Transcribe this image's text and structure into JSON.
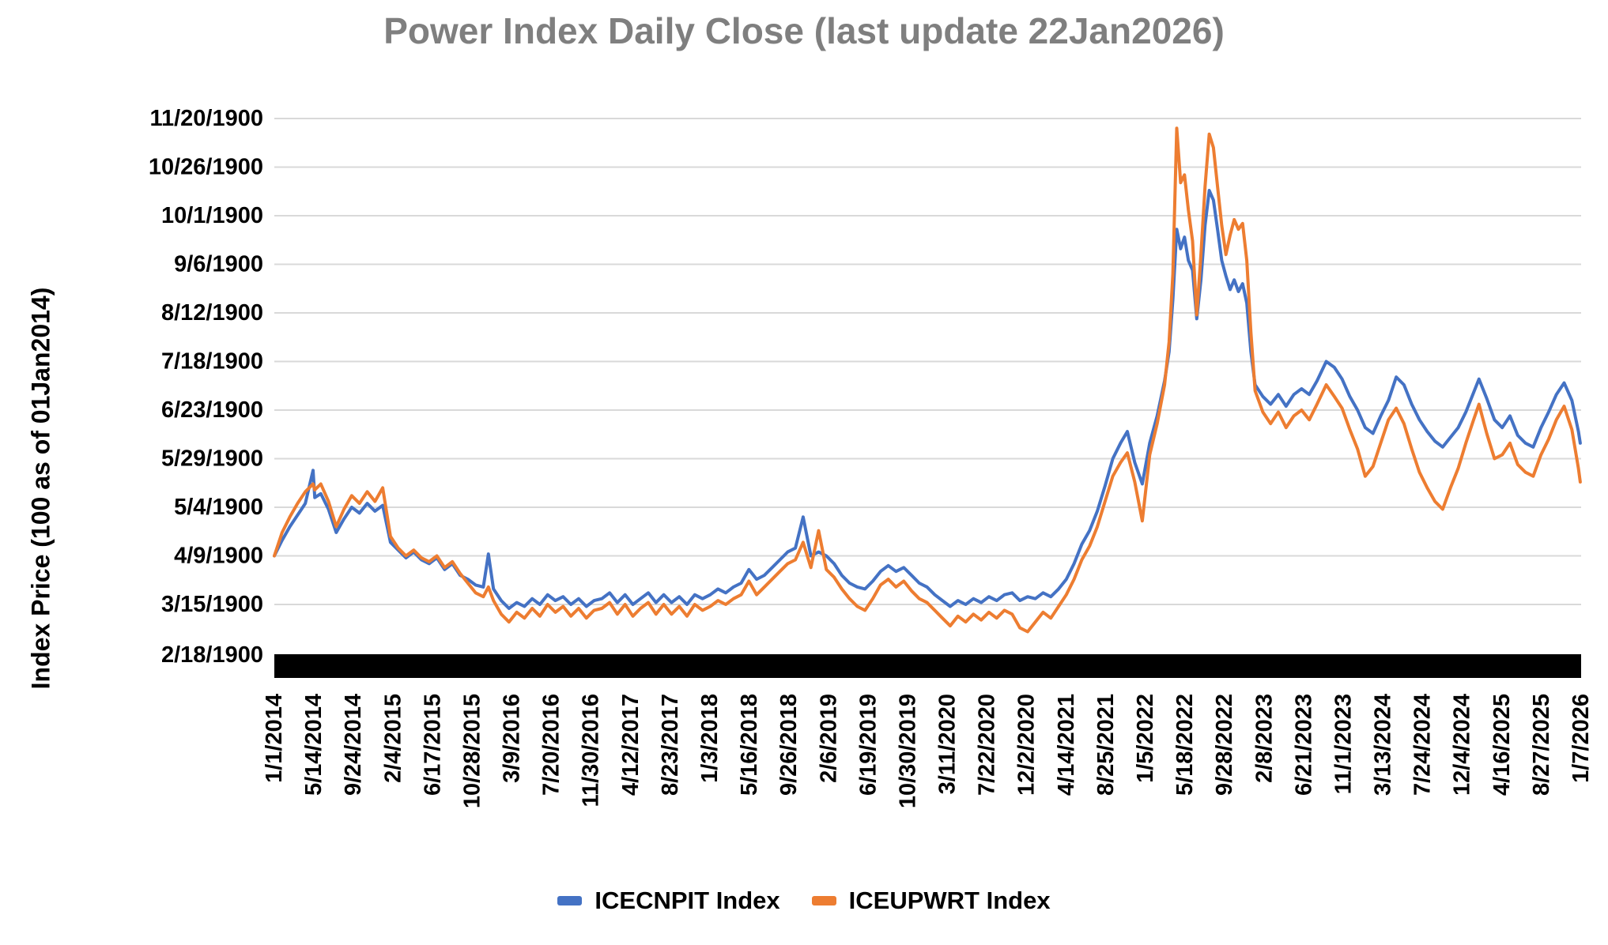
{
  "title": "Power Index Daily Close (last update 22Jan2026)",
  "colors": {
    "series_blue": "#4472C4",
    "series_orange": "#ED7D31",
    "title_gray": "#7F7F7F",
    "gridline": "#D9D9D9",
    "axis_bar": "#000000",
    "tick_text": "#000000"
  },
  "legend": {
    "items": [
      {
        "label": "ICECNPIT Index",
        "color": "#4472C4"
      },
      {
        "label": "ICEUPWRT Index",
        "color": "#ED7D31"
      }
    ]
  },
  "chart_data": {
    "type": "line",
    "title": "Power Index Daily Close (last update 22Jan2026)",
    "xlabel": "",
    "ylabel": "Index Price (100 as of 01Jan2014)",
    "x_unit": "trading days indexed from 01Jan2014",
    "grid": "horizontal",
    "legend_position": "bottom",
    "y_axis": {
      "min": 49,
      "max": 325,
      "tick_values": [
        325,
        300,
        275,
        250,
        225,
        200,
        175,
        150,
        125,
        100,
        75,
        49
      ],
      "tick_labels": [
        "11/20/1900",
        "10/26/1900",
        "10/1/1900",
        "9/6/1900",
        "8/12/1900",
        "7/18/1900",
        "6/23/1900",
        "5/29/1900",
        "5/4/1900",
        "4/9/1900",
        "3/15/1900",
        "2/18/1900"
      ],
      "note": "index values rendered in Excel 1900 date format; 100 = 4/9/1900"
    },
    "x_axis": {
      "tick_days": [
        0,
        133,
        266,
        399,
        532,
        665,
        798,
        931,
        1064,
        1197,
        1330,
        1463,
        1596,
        1729,
        1862,
        1995,
        2128,
        2261,
        2394,
        2527,
        2660,
        2793,
        2926,
        3059,
        3192,
        3325,
        3458,
        3591,
        3724,
        3857,
        3990,
        4123,
        4256,
        4389
      ],
      "tick_labels": [
        "1/1/2014",
        "5/14/2014",
        "9/24/2014",
        "2/4/2015",
        "6/17/2015",
        "10/28/2015",
        "3/9/2016",
        "7/20/2016",
        "11/30/2016",
        "4/12/2017",
        "8/23/2017",
        "1/3/2018",
        "5/16/2018",
        "9/26/2018",
        "2/6/2019",
        "6/19/2019",
        "10/30/2019",
        "3/11/2020",
        "7/22/2020",
        "12/2/2020",
        "4/14/2021",
        "8/25/2021",
        "1/5/2022",
        "5/18/2022",
        "9/28/2022",
        "2/8/2023",
        "6/21/2023",
        "11/1/2023",
        "3/13/2024",
        "7/24/2024",
        "12/4/2024",
        "4/16/2025",
        "8/27/2025",
        "1/7/2026"
      ]
    },
    "x": [
      0,
      26,
      52,
      78,
      104,
      130,
      136,
      156,
      182,
      208,
      234,
      260,
      286,
      312,
      338,
      364,
      390,
      416,
      442,
      468,
      494,
      520,
      546,
      572,
      598,
      624,
      650,
      676,
      702,
      719,
      736,
      762,
      788,
      814,
      840,
      866,
      892,
      918,
      944,
      970,
      996,
      1022,
      1048,
      1074,
      1100,
      1126,
      1152,
      1178,
      1204,
      1230,
      1256,
      1282,
      1308,
      1334,
      1360,
      1386,
      1412,
      1438,
      1464,
      1490,
      1516,
      1542,
      1568,
      1594,
      1620,
      1646,
      1672,
      1698,
      1724,
      1750,
      1776,
      1802,
      1828,
      1854,
      1880,
      1906,
      1932,
      1958,
      1984,
      2010,
      2036,
      2062,
      2088,
      2114,
      2140,
      2166,
      2192,
      2218,
      2244,
      2270,
      2296,
      2322,
      2348,
      2374,
      2400,
      2426,
      2452,
      2478,
      2504,
      2530,
      2556,
      2582,
      2608,
      2634,
      2660,
      2686,
      2712,
      2738,
      2764,
      2790,
      2816,
      2842,
      2865,
      2890,
      2915,
      2940,
      2965,
      2990,
      3005,
      3018,
      3031,
      3044,
      3057,
      3070,
      3084,
      3098,
      3112,
      3126,
      3140,
      3154,
      3168,
      3182,
      3196,
      3210,
      3224,
      3238,
      3252,
      3266,
      3280,
      3294,
      3320,
      3346,
      3372,
      3398,
      3424,
      3450,
      3476,
      3502,
      3533,
      3560,
      3586,
      3612,
      3638,
      3664,
      3690,
      3716,
      3742,
      3768,
      3794,
      3820,
      3846,
      3872,
      3898,
      3924,
      3950,
      3976,
      4002,
      4028,
      4046,
      4072,
      4098,
      4124,
      4150,
      4176,
      4202,
      4228,
      4254,
      4280,
      4306,
      4332,
      4358,
      4380,
      4386
    ],
    "series": [
      {
        "name": "ICECNPIT Index",
        "color": "#4472C4",
        "values": [
          100,
          108,
          115,
          121,
          127,
          144,
          130,
          132,
          124,
          112,
          119,
          125,
          122,
          127,
          123,
          126,
          107,
          103,
          99,
          102,
          98,
          96,
          99,
          93,
          96,
          90,
          88,
          85,
          84,
          101,
          83,
          77,
          73,
          76,
          74,
          78,
          75,
          80,
          77,
          79,
          75,
          78,
          74,
          77,
          78,
          81,
          76,
          80,
          75,
          78,
          81,
          76,
          80,
          76,
          79,
          75,
          80,
          78,
          80,
          83,
          81,
          84,
          86,
          93,
          88,
          90,
          94,
          98,
          102,
          104,
          120,
          100,
          102,
          100,
          96,
          90,
          86,
          84,
          83,
          87,
          92,
          95,
          92,
          94,
          90,
          86,
          84,
          80,
          77,
          74,
          77,
          75,
          78,
          76,
          79,
          77,
          80,
          81,
          77,
          79,
          78,
          81,
          79,
          83,
          88,
          96,
          106,
          113,
          123,
          136,
          150,
          158,
          164,
          148,
          137,
          158,
          172,
          190,
          205,
          232,
          268,
          258,
          264,
          252,
          247,
          222,
          242,
          270,
          288,
          283,
          268,
          252,
          244,
          237,
          242,
          236,
          240,
          230,
          205,
          188,
          182,
          178,
          183,
          177,
          183,
          186,
          183,
          190,
          200,
          197,
          191,
          182,
          175,
          166,
          163,
          172,
          180,
          192,
          188,
          178,
          170,
          164,
          159,
          156,
          161,
          166,
          174,
          184,
          191,
          181,
          170,
          166,
          172,
          162,
          158,
          156,
          166,
          174,
          183,
          189,
          180,
          164,
          158
        ]
      },
      {
        "name": "ICEUPWRT Index",
        "color": "#ED7D31",
        "values": [
          100,
          112,
          120,
          127,
          133,
          137,
          134,
          137,
          128,
          115,
          124,
          131,
          127,
          133,
          128,
          135,
          110,
          104,
          100,
          103,
          99,
          97,
          100,
          94,
          97,
          91,
          86,
          81,
          79,
          84,
          77,
          70,
          66,
          71,
          68,
          73,
          69,
          75,
          71,
          74,
          69,
          73,
          68,
          72,
          73,
          76,
          70,
          75,
          69,
          73,
          76,
          70,
          75,
          70,
          74,
          69,
          75,
          72,
          74,
          77,
          75,
          78,
          80,
          87,
          80,
          84,
          88,
          92,
          96,
          98,
          107,
          94,
          113,
          93,
          89,
          83,
          78,
          74,
          72,
          78,
          85,
          88,
          84,
          87,
          82,
          78,
          76,
          72,
          68,
          64,
          69,
          66,
          70,
          67,
          71,
          68,
          72,
          70,
          63,
          61,
          66,
          71,
          68,
          74,
          80,
          88,
          98,
          105,
          115,
          128,
          141,
          148,
          153,
          138,
          118,
          152,
          168,
          188,
          210,
          245,
          320,
          292,
          296,
          278,
          262,
          224,
          255,
          290,
          317,
          310,
          290,
          270,
          255,
          265,
          273,
          268,
          271,
          252,
          215,
          185,
          174,
          168,
          174,
          166,
          172,
          175,
          170,
          178,
          188,
          182,
          176,
          165,
          155,
          141,
          146,
          158,
          170,
          176,
          168,
          155,
          143,
          135,
          128,
          124,
          135,
          145,
          158,
          170,
          178,
          163,
          150,
          152,
          158,
          147,
          143,
          141,
          152,
          160,
          170,
          177,
          165,
          145,
          138
        ]
      }
    ]
  }
}
